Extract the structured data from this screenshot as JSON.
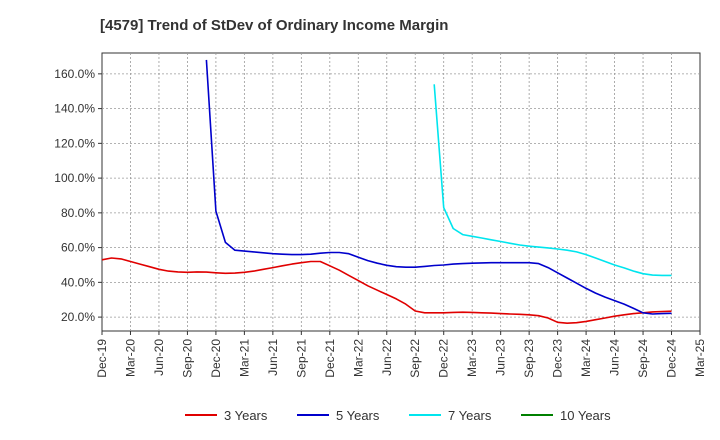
{
  "chart_data": {
    "type": "line",
    "title": "[4579]  Trend of StDev of Ordinary Income Margin",
    "x_tick_labels": [
      "Dec-19",
      "Mar-20",
      "Jun-20",
      "Sep-20",
      "Dec-20",
      "Mar-21",
      "Jun-21",
      "Sep-21",
      "Dec-21",
      "Mar-22",
      "Jun-22",
      "Sep-22",
      "Dec-22",
      "Mar-23",
      "Jun-23",
      "Sep-23",
      "Dec-23",
      "Mar-24",
      "Jun-24",
      "Sep-24",
      "Dec-24",
      "Mar-25"
    ],
    "y_tick_labels": [
      "20.0%",
      "40.0%",
      "60.0%",
      "80.0%",
      "100.0%",
      "120.0%",
      "140.0%",
      "160.0%"
    ],
    "y_ticks": [
      20,
      40,
      60,
      80,
      100,
      120,
      140,
      160
    ],
    "ylim": [
      12,
      172
    ],
    "y_unit": "%",
    "grid": true,
    "legend_position": "bottom",
    "series": [
      {
        "name": "3 Years",
        "color": "#e00000",
        "x": [
          "Dec-19",
          "Jan-20",
          "Feb-20",
          "Mar-20",
          "Apr-20",
          "May-20",
          "Jun-20",
          "Jul-20",
          "Aug-20",
          "Sep-20",
          "Oct-20",
          "Nov-20",
          "Dec-20",
          "Jan-21",
          "Feb-21",
          "Mar-21",
          "Apr-21",
          "May-21",
          "Jun-21",
          "Jul-21",
          "Aug-21",
          "Sep-21",
          "Oct-21",
          "Nov-21",
          "Dec-21",
          "Jan-22",
          "Feb-22",
          "Mar-22",
          "Apr-22",
          "May-22",
          "Jun-22",
          "Jul-22",
          "Aug-22",
          "Sep-22",
          "Oct-22",
          "Nov-22",
          "Dec-22",
          "Jan-23",
          "Feb-23",
          "Mar-23",
          "Apr-23",
          "May-23",
          "Jun-23",
          "Jul-23",
          "Aug-23",
          "Sep-23",
          "Oct-23",
          "Nov-23",
          "Dec-23",
          "Jan-24",
          "Feb-24",
          "Mar-24",
          "Apr-24",
          "May-24",
          "Jun-24",
          "Jul-24",
          "Aug-24",
          "Sep-24",
          "Oct-24",
          "Nov-24",
          "Dec-24"
        ],
        "values": [
          53,
          54,
          53.5,
          52,
          50.5,
          49,
          47.5,
          46.5,
          46,
          45.8,
          46,
          45.9,
          45.5,
          45.2,
          45.3,
          45.8,
          46.5,
          47.5,
          48.5,
          49.5,
          50.5,
          51.3,
          52,
          52,
          49.5,
          47,
          44,
          41,
          38,
          35.5,
          33,
          30.5,
          27.5,
          23.5,
          22.5,
          22.5,
          22.5,
          22.7,
          22.8,
          22.7,
          22.5,
          22.3,
          22,
          21.8,
          21.6,
          21.3,
          20.8,
          19.5,
          17,
          16.5,
          16.8,
          17.5,
          18.5,
          19.5,
          20.5,
          21.3,
          22,
          22.5,
          23,
          23.2,
          23.4
        ]
      },
      {
        "name": "5 Years",
        "color": "#0000cc",
        "x": [
          "Nov-20",
          "Dec-20",
          "Jan-21",
          "Feb-21",
          "Mar-21",
          "Apr-21",
          "May-21",
          "Jun-21",
          "Jul-21",
          "Aug-21",
          "Sep-21",
          "Oct-21",
          "Nov-21",
          "Dec-21",
          "Jan-22",
          "Feb-22",
          "Mar-22",
          "Apr-22",
          "May-22",
          "Jun-22",
          "Jul-22",
          "Aug-22",
          "Sep-22",
          "Oct-22",
          "Nov-22",
          "Dec-22",
          "Jan-23",
          "Feb-23",
          "Mar-23",
          "Apr-23",
          "May-23",
          "Jun-23",
          "Jul-23",
          "Aug-23",
          "Sep-23",
          "Oct-23",
          "Nov-23",
          "Dec-23",
          "Jan-24",
          "Feb-24",
          "Mar-24",
          "Apr-24",
          "May-24",
          "Jun-24",
          "Jul-24",
          "Aug-24",
          "Sep-24",
          "Oct-24",
          "Nov-24",
          "Dec-24"
        ],
        "values": [
          168,
          81,
          63,
          58.5,
          58,
          57.5,
          57,
          56.5,
          56.2,
          56,
          56,
          56.2,
          56.8,
          57.2,
          57.2,
          56.5,
          54.5,
          52.5,
          51,
          49.8,
          49,
          48.7,
          48.7,
          49.2,
          49.7,
          50,
          50.5,
          50.8,
          51,
          51.2,
          51.3,
          51.3,
          51.3,
          51.3,
          51.3,
          50.8,
          48.5,
          45.5,
          42.5,
          39.5,
          36.5,
          33.8,
          31.5,
          29.5,
          27.5,
          25,
          22.5,
          21.8,
          22,
          22.2
        ]
      },
      {
        "name": "7 Years",
        "color": "#00e5ee",
        "x": [
          "Nov-22",
          "Dec-22",
          "Jan-23",
          "Feb-23",
          "Mar-23",
          "Apr-23",
          "May-23",
          "Jun-23",
          "Jul-23",
          "Aug-23",
          "Sep-23",
          "Oct-23",
          "Nov-23",
          "Dec-23",
          "Jan-24",
          "Feb-24",
          "Mar-24",
          "Apr-24",
          "May-24",
          "Jun-24",
          "Jul-24",
          "Aug-24",
          "Sep-24",
          "Oct-24",
          "Nov-24",
          "Dec-24"
        ],
        "values": [
          154,
          83,
          71,
          67.5,
          66.5,
          65.5,
          64.5,
          63.5,
          62.5,
          61.5,
          60.8,
          60.3,
          59.8,
          59.2,
          58.5,
          57.5,
          56,
          54,
          52,
          50,
          48.3,
          46.5,
          45,
          44.2,
          44,
          44
        ]
      },
      {
        "name": "10 Years",
        "color": "#008000",
        "x": [],
        "values": []
      }
    ]
  }
}
